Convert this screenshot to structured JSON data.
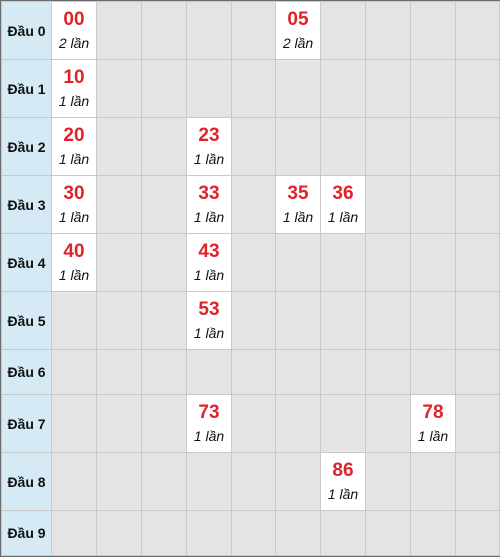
{
  "cell_suffix": "lần",
  "rows": [
    {
      "label": "Đầu 0",
      "cells": [
        {
          "col": 0,
          "number": "00",
          "count": "2 lần"
        },
        {
          "col": 5,
          "number": "05",
          "count": "2 lần"
        }
      ]
    },
    {
      "label": "Đầu 1",
      "cells": [
        {
          "col": 0,
          "number": "10",
          "count": "1 lần"
        }
      ]
    },
    {
      "label": "Đầu 2",
      "cells": [
        {
          "col": 0,
          "number": "20",
          "count": "1 lần"
        },
        {
          "col": 3,
          "number": "23",
          "count": "1 lần"
        }
      ]
    },
    {
      "label": "Đầu 3",
      "cells": [
        {
          "col": 0,
          "number": "30",
          "count": "1 lần"
        },
        {
          "col": 3,
          "number": "33",
          "count": "1 lần"
        },
        {
          "col": 5,
          "number": "35",
          "count": "1 lần"
        },
        {
          "col": 6,
          "number": "36",
          "count": "1 lần"
        }
      ]
    },
    {
      "label": "Đầu 4",
      "cells": [
        {
          "col": 0,
          "number": "40",
          "count": "1 lần"
        },
        {
          "col": 3,
          "number": "43",
          "count": "1 lần"
        }
      ]
    },
    {
      "label": "Đầu 5",
      "cells": [
        {
          "col": 3,
          "number": "53",
          "count": "1 lần"
        }
      ]
    },
    {
      "label": "Đầu 6",
      "cells": []
    },
    {
      "label": "Đầu 7",
      "cells": [
        {
          "col": 3,
          "number": "73",
          "count": "1 lần"
        },
        {
          "col": 8,
          "number": "78",
          "count": "1 lần"
        }
      ]
    },
    {
      "label": "Đầu 8",
      "cells": [
        {
          "col": 6,
          "number": "86",
          "count": "1 lần"
        }
      ]
    },
    {
      "label": "Đầu 9",
      "cells": []
    }
  ]
}
